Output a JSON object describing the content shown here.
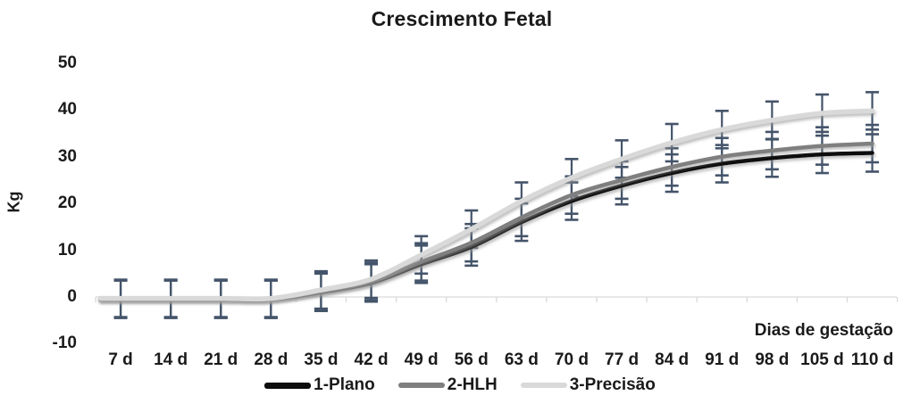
{
  "title": "Crescimento Fetal",
  "y_axis": {
    "label": "Kg",
    "ticks": [
      50,
      40,
      30,
      20,
      10,
      0,
      -10
    ]
  },
  "x_axis": {
    "label": "Dias de gestação",
    "categories": [
      "7 d",
      "14 d",
      "21 d",
      "28 d",
      "35 d",
      "42 d",
      "49 d",
      "56 d",
      "63 d",
      "70 d",
      "77 d",
      "84 d",
      "91 d",
      "98 d",
      "105 d",
      "110 d"
    ]
  },
  "legend": [
    {
      "label": "1-Plano",
      "color": "#0d0d0d"
    },
    {
      "label": "2-HLH",
      "color": "#7f7f7f"
    },
    {
      "label": "3-Precisão",
      "color": "#d9d9d9"
    }
  ],
  "chart_data": {
    "type": "line",
    "title": "Crescimento Fetal",
    "xlabel": "Dias de gestação",
    "ylabel": "Kg",
    "ylim": [
      -10,
      50
    ],
    "grid": false,
    "legend_position": "bottom",
    "axis_color": "#d9d9d9",
    "error_bar_color": "#44546a",
    "categories": [
      "7 d",
      "14 d",
      "21 d",
      "28 d",
      "35 d",
      "42 d",
      "49 d",
      "56 d",
      "63 d",
      "70 d",
      "77 d",
      "84 d",
      "91 d",
      "98 d",
      "105 d",
      "110 d"
    ],
    "series": [
      {
        "name": "1-Plano",
        "color": "#0d0d0d",
        "width": 4.5,
        "error": 4,
        "values": [
          -0.5,
          -0.5,
          -0.5,
          -0.5,
          1.0,
          3.0,
          7.0,
          10.7,
          16.0,
          20.5,
          23.8,
          26.5,
          28.5,
          29.7,
          30.5,
          30.8
        ]
      },
      {
        "name": "2-HLH",
        "color": "#7f7f7f",
        "width": 4.5,
        "error": 4,
        "values": [
          -0.4,
          -0.4,
          -0.4,
          -0.4,
          1.2,
          3.3,
          7.5,
          11.6,
          17.0,
          21.8,
          25.0,
          27.8,
          30.0,
          31.3,
          32.3,
          32.8
        ]
      },
      {
        "name": "3-Precisão",
        "color": "#d9d9d9",
        "width": 5.5,
        "error": 4,
        "values": [
          -0.3,
          -0.3,
          -0.3,
          -0.3,
          1.5,
          3.8,
          9.0,
          14.5,
          20.5,
          25.5,
          29.5,
          33.0,
          35.8,
          37.8,
          39.3,
          39.8
        ]
      }
    ]
  }
}
